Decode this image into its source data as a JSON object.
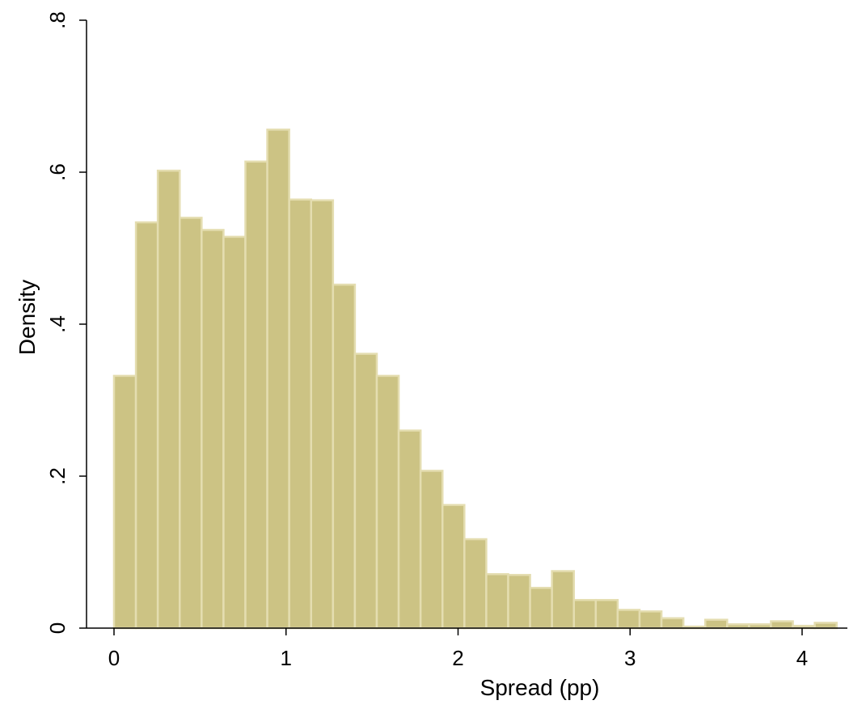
{
  "chart_data": {
    "type": "bar",
    "subtype": "histogram",
    "title": "",
    "xlabel": "Spread (pp)",
    "ylabel": "Density",
    "bin_width": 0.1273,
    "bin_start": 0.0,
    "values": [
      0.332,
      0.534,
      0.602,
      0.54,
      0.524,
      0.515,
      0.614,
      0.656,
      0.564,
      0.563,
      0.452,
      0.361,
      0.332,
      0.26,
      0.207,
      0.162,
      0.117,
      0.071,
      0.07,
      0.053,
      0.075,
      0.037,
      0.037,
      0.024,
      0.022,
      0.013,
      0.002,
      0.011,
      0.005,
      0.005,
      0.009,
      0.003,
      0.007
    ],
    "xlim": [
      -0.15,
      4.24
    ],
    "ylim": [
      0,
      0.8
    ],
    "xticks": [
      0,
      1,
      2,
      3,
      4
    ],
    "xtick_labels": [
      "0",
      "1",
      "2",
      "3",
      "4"
    ],
    "yticks": [
      0,
      0.2,
      0.4,
      0.6,
      0.8
    ],
    "ytick_labels": [
      "0",
      ".2",
      ".4",
      ".6",
      ".8"
    ],
    "grid": false,
    "legend": "none",
    "colors": {
      "bar_fill": "#CCC384",
      "bar_edge": "#E4DDB0",
      "axis": "#000000"
    }
  }
}
